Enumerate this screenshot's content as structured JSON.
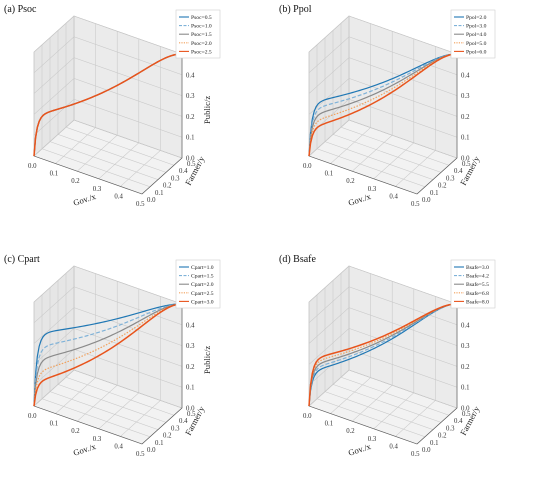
{
  "colors": [
    "#1f77b4",
    "#7fb2d8",
    "#8a8a8a",
    "#f2a15c",
    "#e8541c"
  ],
  "chart_data": [
    {
      "type": "line",
      "panel_label": "(a) Psoc",
      "xlabel": "Gov./x",
      "ylabel": "Farmer/y",
      "zlabel": "Public/z",
      "xlim": [
        0,
        0.5
      ],
      "ylim": [
        0,
        0.5
      ],
      "zlim": [
        0,
        0.5
      ],
      "x_ticks": [
        "0.0",
        "0.1",
        "0.2",
        "0.3",
        "0.4",
        "0.5"
      ],
      "y_ticks": [
        "0.0",
        "0.1",
        "0.2",
        "0.3",
        "0.4",
        "0.5"
      ],
      "z_ticks": [
        "0.0",
        "0.1",
        "0.2",
        "0.3",
        "0.4",
        "0.5"
      ],
      "grid": true,
      "legend_position": "upper-right",
      "series": [
        {
          "name": "Psoc=0.5",
          "curve": 0.4,
          "dashed": false
        },
        {
          "name": "Psoc=1.0",
          "curve": 0.4,
          "dashed": true
        },
        {
          "name": "Psoc=1.5",
          "curve": 0.4,
          "dashed": false
        },
        {
          "name": "Psoc=2.0",
          "curve": 0.4,
          "dashed": true
        },
        {
          "name": "Psoc=2.5",
          "curve": 0.4,
          "dashed": false
        }
      ]
    },
    {
      "type": "line",
      "panel_label": "(b) Ppol",
      "xlabel": "Gov./x",
      "ylabel": "Farmer/y",
      "zlabel": "",
      "xlim": [
        0,
        0.5
      ],
      "ylim": [
        0,
        0.5
      ],
      "zlim": [
        0,
        0.5
      ],
      "x_ticks": [
        "0.0",
        "0.1",
        "0.2",
        "0.3",
        "0.4",
        "0.5"
      ],
      "y_ticks": [
        "0.0",
        "0.1",
        "0.2",
        "0.3",
        "0.4",
        "0.5"
      ],
      "z_ticks": [
        "0.0",
        "0.1",
        "0.2",
        "0.3",
        "0.4",
        "0.5"
      ],
      "grid": true,
      "legend_position": "upper-right",
      "series": [
        {
          "name": "Ppol=2.0",
          "curve": 0.52,
          "dashed": false
        },
        {
          "name": "Ppol=3.0",
          "curve": 0.46,
          "dashed": true
        },
        {
          "name": "Ppol=4.0",
          "curve": 0.4,
          "dashed": false
        },
        {
          "name": "Ppol=5.0",
          "curve": 0.34,
          "dashed": true
        },
        {
          "name": "Ppol=6.0",
          "curve": 0.28,
          "dashed": false
        }
      ]
    },
    {
      "type": "line",
      "panel_label": "(c) Cpart",
      "xlabel": "Gov./x",
      "ylabel": "Farmer/y",
      "zlabel": "Public/z",
      "xlim": [
        0,
        0.5
      ],
      "ylim": [
        0,
        0.5
      ],
      "zlim": [
        0,
        0.5
      ],
      "x_ticks": [
        "0.0",
        "0.1",
        "0.2",
        "0.3",
        "0.4",
        "0.5"
      ],
      "y_ticks": [
        "0.0",
        "0.1",
        "0.2",
        "0.3",
        "0.4",
        "0.5"
      ],
      "z_ticks": [
        "0.0",
        "0.1",
        "0.2",
        "0.3",
        "0.4",
        "0.5"
      ],
      "grid": true,
      "legend_position": "upper-right",
      "series": [
        {
          "name": "Cpart=1.0",
          "curve": 0.7,
          "dashed": false
        },
        {
          "name": "Cpart=1.5",
          "curve": 0.57,
          "dashed": true
        },
        {
          "name": "Cpart=2.0",
          "curve": 0.45,
          "dashed": false
        },
        {
          "name": "Cpart=2.5",
          "curve": 0.34,
          "dashed": true
        },
        {
          "name": "Cpart=3.0",
          "curve": 0.24,
          "dashed": false
        }
      ]
    },
    {
      "type": "line",
      "panel_label": "(d) Bsafe",
      "xlabel": "Gov./x",
      "ylabel": "Farmer/y",
      "zlabel": "",
      "xlim": [
        0,
        0.5
      ],
      "ylim": [
        0,
        0.5
      ],
      "zlim": [
        0,
        0.5
      ],
      "x_ticks": [
        "0.0",
        "0.1",
        "0.2",
        "0.3",
        "0.4",
        "0.5"
      ],
      "y_ticks": [
        "0.0",
        "0.1",
        "0.2",
        "0.3",
        "0.4",
        "0.5"
      ],
      "z_ticks": [
        "0.0",
        "0.1",
        "0.2",
        "0.3",
        "0.4",
        "0.5"
      ],
      "grid": true,
      "legend_position": "upper-right",
      "series": [
        {
          "name": "Bsafe=3.0",
          "curve": 0.34,
          "dashed": false
        },
        {
          "name": "Bsafe=4.2",
          "curve": 0.37,
          "dashed": true
        },
        {
          "name": "Bsafe=5.5",
          "curve": 0.4,
          "dashed": false
        },
        {
          "name": "Bsafe=6.8",
          "curve": 0.43,
          "dashed": true
        },
        {
          "name": "Bsafe=8.0",
          "curve": 0.46,
          "dashed": false
        }
      ]
    }
  ]
}
